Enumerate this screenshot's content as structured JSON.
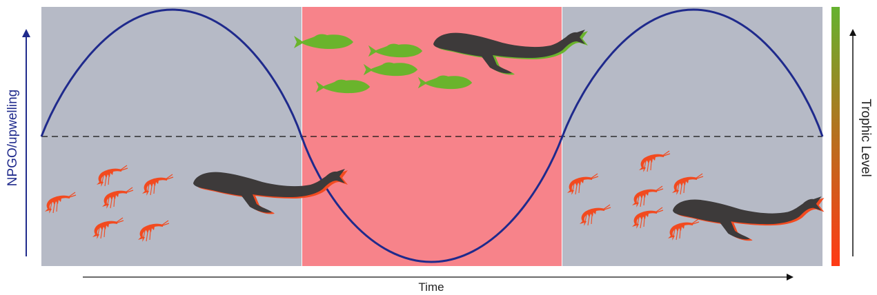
{
  "labels": {
    "y_axis": "NPGO/upwelling",
    "x_axis": "Time",
    "trophic": "Trophic Level"
  },
  "colors": {
    "low_phase": "#b6bac6",
    "high_phase": "#f7838a",
    "curve": "#1f2a8c",
    "axis_left": "#1f2a8c",
    "axis": "#111111",
    "krill": "#f24a1f",
    "fish": "#6ab42c",
    "whale": "#3d3a3a",
    "trophic_top": "#65b22f",
    "trophic_bottom": "#ff3a16"
  },
  "icons": {
    "prey_low": "krill-icon",
    "prey_high": "fish-icon",
    "predator": "whale-icon"
  }
}
